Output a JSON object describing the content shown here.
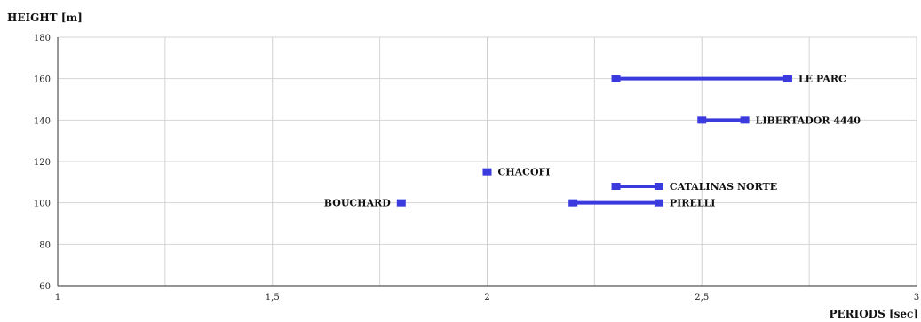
{
  "chart_data": {
    "type": "scatter",
    "ylabel": "HEIGHT [m]",
    "xlabel": "PERIODS [sec]",
    "xlim": [
      1,
      3
    ],
    "ylim": [
      60,
      180
    ],
    "x_ticks": [
      1,
      1.5,
      2,
      2.5,
      3
    ],
    "x_tick_labels": [
      "1",
      "1,5",
      "2",
      "2,5",
      "3"
    ],
    "y_ticks": [
      60,
      80,
      100,
      120,
      140,
      160,
      180
    ],
    "y_tick_labels": [
      "60",
      "80",
      "100",
      "120",
      "140",
      "160",
      "180"
    ],
    "x_minor_grid": [
      1.25,
      1.75,
      2.25,
      2.75
    ],
    "grid": true,
    "series_color": "#3a3adf",
    "buildings": [
      {
        "name": "LE PARC",
        "x_min": 2.3,
        "x_max": 2.7,
        "height": 160,
        "label_side": "right"
      },
      {
        "name": "LIBERTADOR 4440",
        "x_min": 2.5,
        "x_max": 2.6,
        "height": 140,
        "label_side": "right"
      },
      {
        "name": "CHACOFI",
        "x_min": 2.0,
        "x_max": 2.0,
        "height": 115,
        "label_side": "right"
      },
      {
        "name": "CATALINAS NORTE",
        "x_min": 2.3,
        "x_max": 2.4,
        "height": 108,
        "label_side": "right"
      },
      {
        "name": "PIRELLI",
        "x_min": 2.2,
        "x_max": 2.4,
        "height": 100,
        "label_side": "right"
      },
      {
        "name": "BOUCHARD",
        "x_min": 1.8,
        "x_max": 1.8,
        "height": 100,
        "label_side": "left"
      }
    ]
  }
}
